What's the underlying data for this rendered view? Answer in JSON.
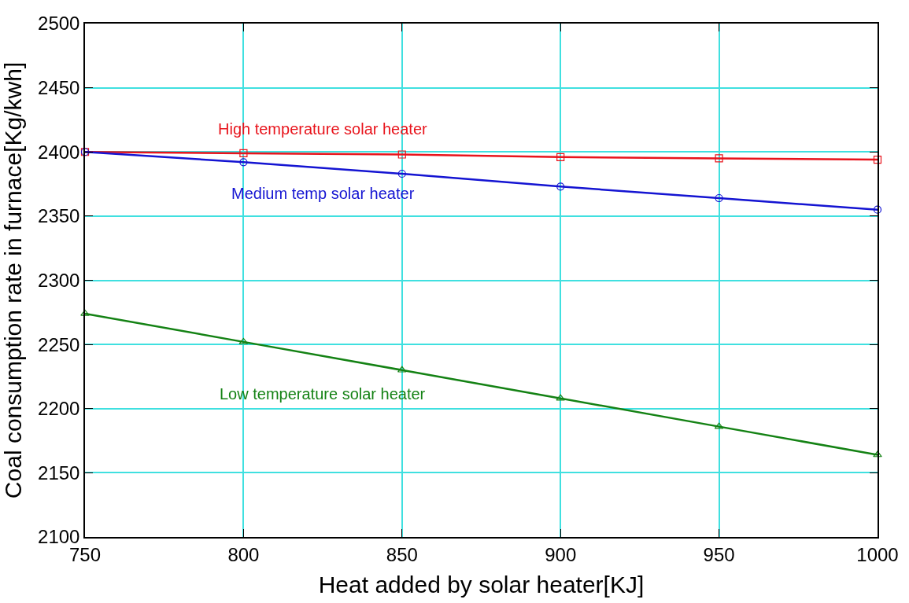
{
  "chart_data": {
    "type": "line",
    "xlabel": "Heat added by solar heater[KJ]",
    "ylabel": "Coal consumption rate in furnace[Kg/kwh]",
    "x": [
      750,
      800,
      850,
      900,
      950,
      1000
    ],
    "series": [
      {
        "name": "High temperature solar heater",
        "color": "#e8141c",
        "marker": "square",
        "values": [
          2400,
          2399,
          2398,
          2396,
          2395,
          2394
        ]
      },
      {
        "name": "Medium temp solar heater",
        "color": "#1414d2",
        "marker": "circle",
        "values": [
          2400,
          2392,
          2383,
          2373,
          2364,
          2355
        ]
      },
      {
        "name": "Low temperature solar heater",
        "color": "#148214",
        "marker": "triangle",
        "values": [
          2274,
          2252,
          2230,
          2208,
          2186,
          2164
        ]
      }
    ],
    "xlim": [
      750,
      1000
    ],
    "xticks": [
      750,
      800,
      850,
      900,
      950,
      1000
    ],
    "ylim": [
      2100,
      2500
    ],
    "yticks": [
      2100,
      2150,
      2200,
      2250,
      2300,
      2350,
      2400,
      2450,
      2500
    ],
    "grid": true,
    "legend": false,
    "line_style": "solid"
  }
}
